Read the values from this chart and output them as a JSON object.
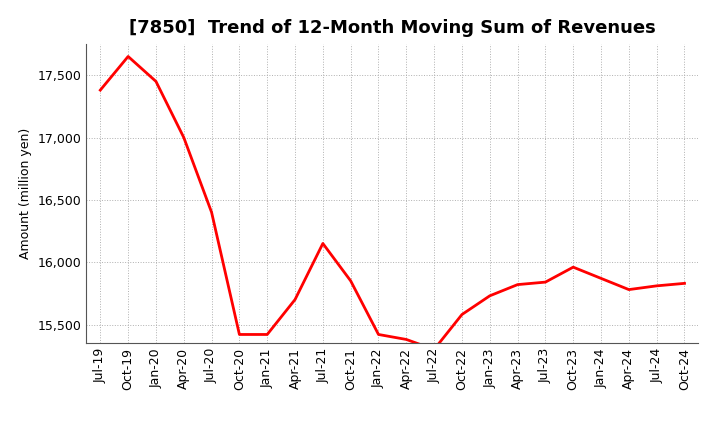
{
  "title": "[7850]  Trend of 12-Month Moving Sum of Revenues",
  "ylabel": "Amount (million yen)",
  "line_color": "#ff0000",
  "background_color": "#ffffff",
  "grid_color": "#b0b0b0",
  "ylim": [
    15350,
    17750
  ],
  "yticks": [
    15500,
    16000,
    16500,
    17000,
    17500
  ],
  "x_labels": [
    "Jul-19",
    "Oct-19",
    "Jan-20",
    "Apr-20",
    "Jul-20",
    "Oct-20",
    "Jan-21",
    "Apr-21",
    "Jul-21",
    "Oct-21",
    "Jan-22",
    "Apr-22",
    "Jul-22",
    "Oct-22",
    "Jan-23",
    "Apr-23",
    "Jul-23",
    "Oct-23",
    "Jan-24",
    "Apr-24",
    "Jul-24",
    "Oct-24"
  ],
  "values": [
    17380,
    17650,
    17450,
    17000,
    16400,
    15420,
    15420,
    15700,
    16150,
    15850,
    15420,
    15380,
    15300,
    15580,
    15730,
    15820,
    15840,
    15960,
    15870,
    15780,
    15810,
    15830
  ],
  "title_fontsize": 13,
  "ylabel_fontsize": 9,
  "tick_fontsize": 9,
  "linewidth": 2.0,
  "figsize": [
    7.2,
    4.4
  ],
  "dpi": 100
}
